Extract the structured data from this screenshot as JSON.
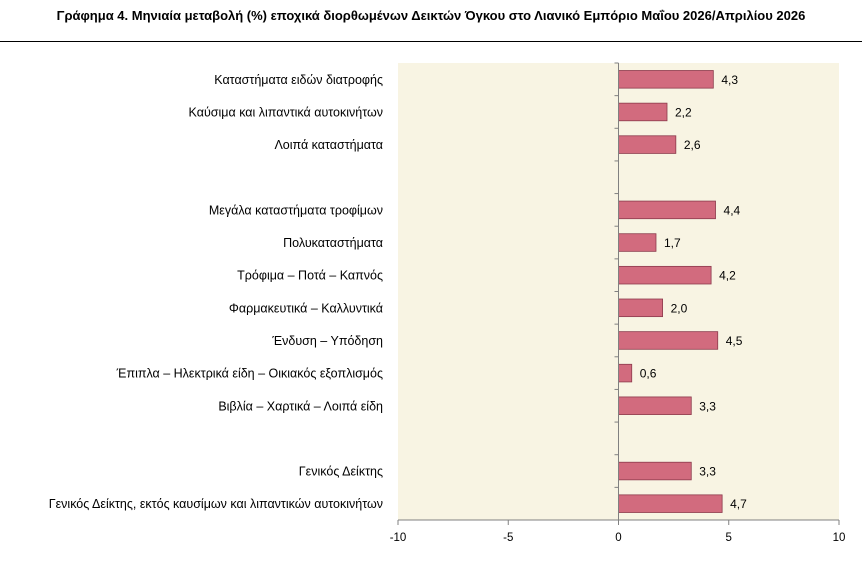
{
  "chart_data": {
    "type": "bar",
    "orientation": "horizontal",
    "title": "Γράφημα 4. Μηνιαία μεταβολή (%) εποχικά διορθωμένων Δεικτών Όγκου στο Λιανικό Εμπόριο Μαΐου 2026/Απριλίου 2026",
    "categories": [
      "Καταστήματα ειδών διατροφής",
      "Καύσιμα και λιπαντικά αυτοκινήτων",
      "Λοιπά καταστήματα",
      "",
      "Μεγάλα καταστήματα τροφίμων",
      "Πολυκαταστήματα",
      "Τρόφιμα – Ποτά – Καπνός",
      "Φαρμακευτικά – Καλλυντικά",
      "Ένδυση – Υπόδηση",
      "Έπιπλα – Ηλεκτρικά είδη – Οικιακός εξοπλισμός",
      "Βιβλία – Χαρτικά – Λοιπά είδη",
      "",
      "Γενικός Δείκτης",
      "Γενικός Δείκτης, εκτός καυσίμων και λιπαντικών αυτοκινήτων"
    ],
    "values": [
      4.3,
      2.2,
      2.6,
      null,
      4.4,
      1.7,
      4.2,
      2.0,
      4.5,
      0.6,
      3.3,
      null,
      3.3,
      4.7
    ],
    "value_labels": [
      "4,3",
      "2,2",
      "2,6",
      "",
      "4,4",
      "1,7",
      "4,2",
      "2,0",
      "4,5",
      "0,6",
      "3,3",
      "",
      "3,3",
      "4,7"
    ],
    "xlim": [
      -10,
      10
    ],
    "xticks": [
      -10,
      -5,
      0,
      5,
      10
    ],
    "xtick_labels": [
      "-10",
      "-5",
      "0",
      "5",
      "10"
    ],
    "grid": false,
    "bar_color": "#d26b7e",
    "bar_edge_color": "#8c3a4c",
    "plot_background": "#f8f4e3"
  }
}
